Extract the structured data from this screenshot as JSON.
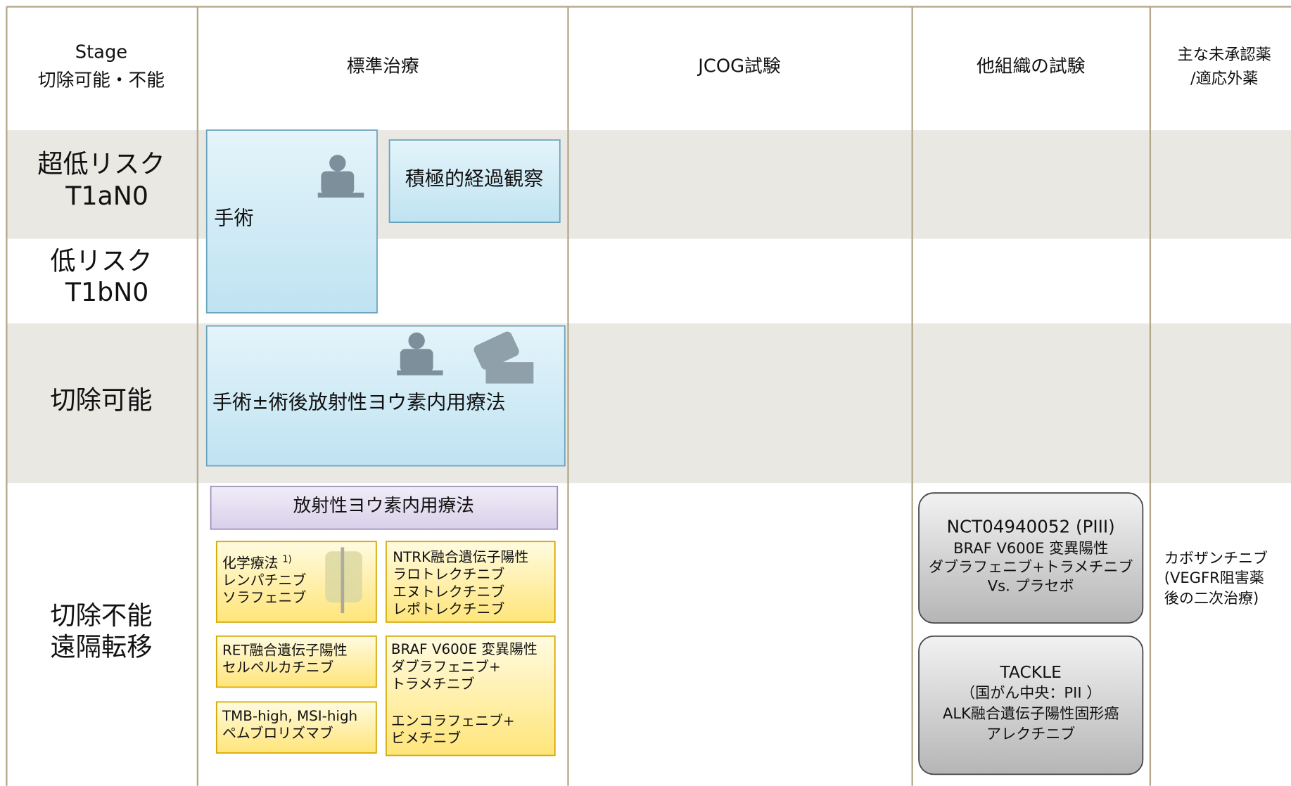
{
  "header": {
    "columns": [
      [
        "Stage",
        "切除可能・不能"
      ],
      [
        "標準治療"
      ],
      [
        "JCOG試験"
      ],
      [
        "他組織の試験"
      ],
      [
        "主な未承認薬",
        "/適応外薬"
      ]
    ]
  },
  "rows": [
    [
      "超低リスク",
      "T1aN0"
    ],
    [
      "低リスク",
      "T1bN0"
    ],
    [
      "切除可能"
    ],
    [
      "切除不能",
      "遠隔転移"
    ]
  ],
  "standard": {
    "surgery": "手術",
    "observation": "積極的経過観察",
    "resectable": "手術±術後放射性ヨウ素内用療法",
    "rai": "放射性ヨウ素内用療法",
    "chemo": {
      "title": "化学療法",
      "note": "1)",
      "lines": [
        "レンパチニブ",
        "ソラフェニブ"
      ]
    },
    "ntrk": [
      "NTRK融合遺伝子陽性",
      "ラロトレクチニブ",
      "エヌトレクチニブ",
      "レポトレクチニブ"
    ],
    "ret": [
      "RET融合遺伝子陽性",
      "セルペルカチニブ"
    ],
    "braf": [
      "BRAF V600E 変異陽性",
      "ダブラフェニブ+",
      "トラメチニブ",
      "エンコラフェニブ+",
      "ビメチニブ"
    ],
    "tmb": [
      "TMB-high, MSI-high",
      "ペムブロリズマブ"
    ]
  },
  "trials": [
    [
      "NCT04940052 (PIII)",
      "BRAF V600E 変異陽性",
      "ダブラフェニブ+トラメチニブ",
      "Vs. プラセボ"
    ],
    [
      "TACKLE",
      "（国がん中央：PII ）",
      "ALK融合遺伝子陽性固形癌",
      "アレクチニブ"
    ]
  ],
  "offlabel": [
    "カボザンチニブ",
    "(VEGFR阻害薬",
    "後の二次治療)"
  ]
}
